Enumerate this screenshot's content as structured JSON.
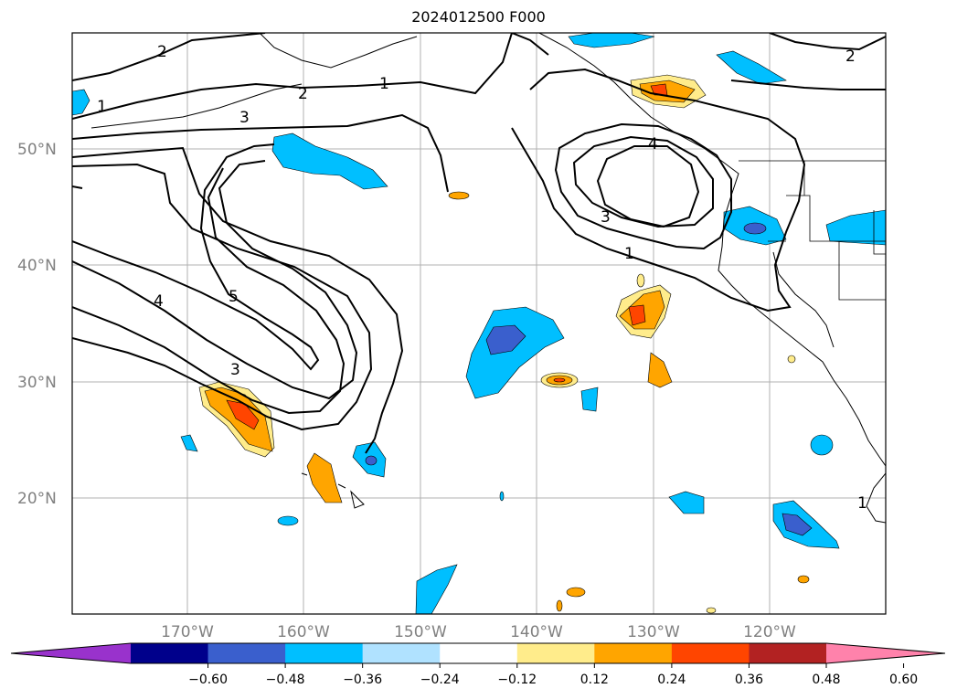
{
  "title": "2024012500 F000",
  "map": {
    "lat_labels": [
      "50°N",
      "40°N",
      "30°N",
      "20°N"
    ],
    "lon_labels": [
      "170°W",
      "160°W",
      "150°W",
      "140°W",
      "130°W",
      "120°W"
    ],
    "contour_labels": [
      "2",
      "2",
      "1",
      "2",
      "3",
      "1",
      "4",
      "3",
      "1",
      "5",
      "4",
      "3",
      "1"
    ],
    "gridlines": true
  },
  "colorbar": {
    "ticks": [
      "−0.60",
      "−0.48",
      "−0.36",
      "−0.24",
      "−0.12",
      "0.12",
      "0.24",
      "0.36",
      "0.48",
      "0.60"
    ],
    "colors": [
      "#9932cc",
      "#00008b",
      "#3a5fcd",
      "#00bfff",
      "#b0e2ff",
      "#ffffff",
      "#ffec8b",
      "#ffa500",
      "#ff4500",
      "#b22222",
      "#ff82ab"
    ],
    "extend": "both"
  }
}
